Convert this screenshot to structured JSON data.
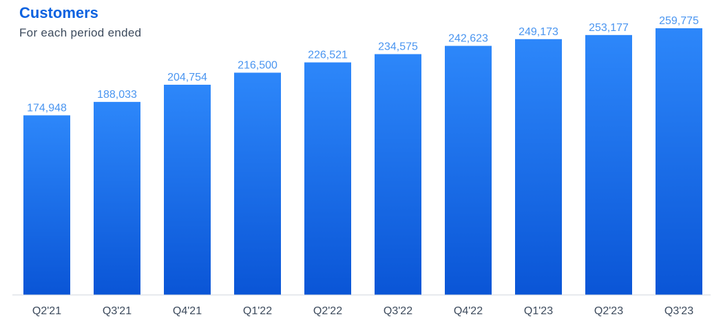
{
  "header": {
    "title": "Customers",
    "subtitle": "For each period ended"
  },
  "colors": {
    "title": "#0b62e0",
    "subtitle": "#3c4a5c",
    "bar_top": "#2d87fa",
    "bar_bottom": "#0a55d6",
    "value_label": "#4a95f0",
    "tick_label": "#3c4a5c",
    "baseline": "#cfd6de"
  },
  "chart_data": {
    "type": "bar",
    "title": "Customers",
    "subtitle": "For each period ended",
    "categories": [
      "Q2'21",
      "Q3'21",
      "Q4'21",
      "Q1'22",
      "Q2'22",
      "Q3'22",
      "Q4'22",
      "Q1'23",
      "Q2'23",
      "Q3'23"
    ],
    "values": [
      174948,
      188033,
      204754,
      216500,
      226521,
      234575,
      242623,
      249173,
      253177,
      259775
    ],
    "value_labels": [
      "174,948",
      "188,033",
      "204,754",
      "216,500",
      "226,521",
      "234,575",
      "242,623",
      "249,173",
      "253,177",
      "259,775"
    ],
    "xlabel": "",
    "ylabel": "",
    "ylim": [
      0,
      265000
    ],
    "grid": false,
    "legend": "none"
  }
}
